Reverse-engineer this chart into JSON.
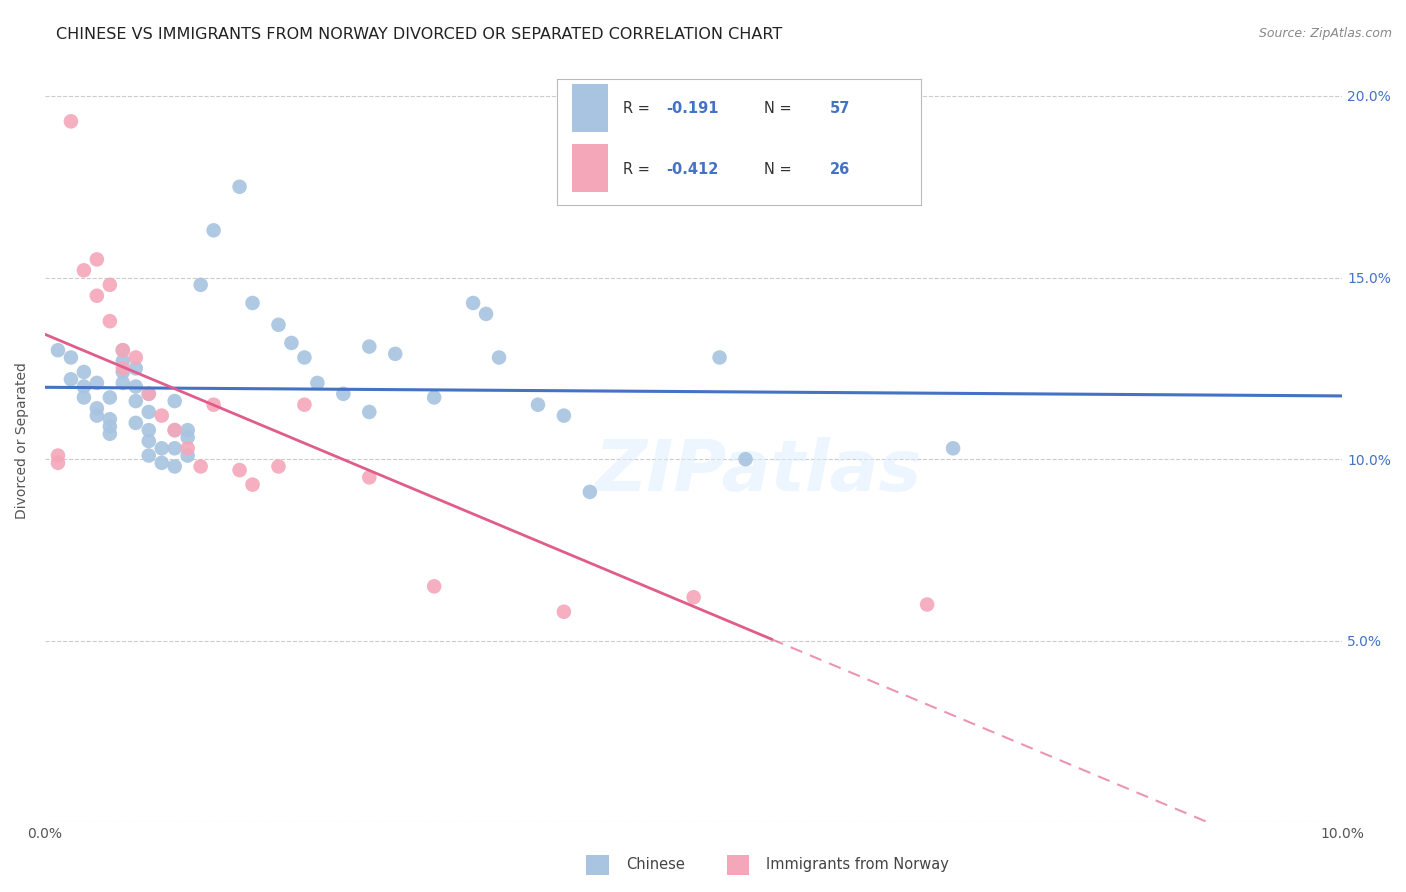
{
  "title": "CHINESE VS IMMIGRANTS FROM NORWAY DIVORCED OR SEPARATED CORRELATION CHART",
  "source": "Source: ZipAtlas.com",
  "ylabel": "Divorced or Separated",
  "xlim": [
    0.0,
    0.1
  ],
  "ylim": [
    0.0,
    0.21
  ],
  "xtick_positions": [
    0.0,
    0.02,
    0.04,
    0.06,
    0.08,
    0.1
  ],
  "xtick_labels": [
    "0.0%",
    "",
    "",
    "",
    "",
    "10.0%"
  ],
  "ytick_positions": [
    0.0,
    0.05,
    0.1,
    0.15,
    0.2
  ],
  "ytick_labels": [
    "",
    "5.0%",
    "10.0%",
    "15.0%",
    "20.0%"
  ],
  "watermark": "ZIPatlas",
  "chinese_color": "#a8c4e0",
  "norway_color": "#f4a7b9",
  "trend_chinese_color": "#4472c4",
  "trend_norway_color": "#e05c8a",
  "legend_r1": "R = ",
  "legend_r1_val": "-0.191",
  "legend_n1": "N = ",
  "legend_n1_val": "57",
  "legend_r2": "R = ",
  "legend_r2_val": "-0.412",
  "legend_n2": "N = ",
  "legend_n2_val": "26",
  "legend_val_color": "#4472c4",
  "legend_text_color": "#333333",
  "bottom_label1": "Chinese",
  "bottom_label2": "Immigrants from Norway",
  "background_color": "#ffffff",
  "grid_color": "#cccccc",
  "title_fontsize": 11.5,
  "tick_fontsize": 10,
  "label_fontsize": 10,
  "source_fontsize": 9,
  "chinese_scatter": [
    [
      0.001,
      0.13
    ],
    [
      0.002,
      0.128
    ],
    [
      0.002,
      0.122
    ],
    [
      0.003,
      0.124
    ],
    [
      0.003,
      0.12
    ],
    [
      0.003,
      0.117
    ],
    [
      0.004,
      0.121
    ],
    [
      0.004,
      0.114
    ],
    [
      0.004,
      0.112
    ],
    [
      0.005,
      0.117
    ],
    [
      0.005,
      0.111
    ],
    [
      0.005,
      0.109
    ],
    [
      0.005,
      0.107
    ],
    [
      0.006,
      0.13
    ],
    [
      0.006,
      0.127
    ],
    [
      0.006,
      0.124
    ],
    [
      0.006,
      0.121
    ],
    [
      0.007,
      0.125
    ],
    [
      0.007,
      0.12
    ],
    [
      0.007,
      0.116
    ],
    [
      0.007,
      0.11
    ],
    [
      0.008,
      0.118
    ],
    [
      0.008,
      0.113
    ],
    [
      0.008,
      0.108
    ],
    [
      0.008,
      0.105
    ],
    [
      0.008,
      0.101
    ],
    [
      0.009,
      0.103
    ],
    [
      0.009,
      0.099
    ],
    [
      0.01,
      0.116
    ],
    [
      0.01,
      0.108
    ],
    [
      0.01,
      0.103
    ],
    [
      0.01,
      0.098
    ],
    [
      0.011,
      0.108
    ],
    [
      0.011,
      0.106
    ],
    [
      0.011,
      0.101
    ],
    [
      0.012,
      0.148
    ],
    [
      0.013,
      0.163
    ],
    [
      0.015,
      0.175
    ],
    [
      0.016,
      0.143
    ],
    [
      0.018,
      0.137
    ],
    [
      0.019,
      0.132
    ],
    [
      0.02,
      0.128
    ],
    [
      0.021,
      0.121
    ],
    [
      0.023,
      0.118
    ],
    [
      0.025,
      0.113
    ],
    [
      0.025,
      0.131
    ],
    [
      0.027,
      0.129
    ],
    [
      0.03,
      0.117
    ],
    [
      0.033,
      0.143
    ],
    [
      0.034,
      0.14
    ],
    [
      0.035,
      0.128
    ],
    [
      0.038,
      0.115
    ],
    [
      0.04,
      0.112
    ],
    [
      0.042,
      0.091
    ],
    [
      0.052,
      0.128
    ],
    [
      0.054,
      0.1
    ],
    [
      0.07,
      0.103
    ]
  ],
  "norway_scatter": [
    [
      0.001,
      0.101
    ],
    [
      0.001,
      0.099
    ],
    [
      0.002,
      0.193
    ],
    [
      0.003,
      0.152
    ],
    [
      0.004,
      0.155
    ],
    [
      0.004,
      0.145
    ],
    [
      0.005,
      0.148
    ],
    [
      0.005,
      0.138
    ],
    [
      0.006,
      0.13
    ],
    [
      0.006,
      0.125
    ],
    [
      0.007,
      0.128
    ],
    [
      0.008,
      0.118
    ],
    [
      0.009,
      0.112
    ],
    [
      0.01,
      0.108
    ],
    [
      0.011,
      0.103
    ],
    [
      0.012,
      0.098
    ],
    [
      0.013,
      0.115
    ],
    [
      0.015,
      0.097
    ],
    [
      0.016,
      0.093
    ],
    [
      0.018,
      0.098
    ],
    [
      0.02,
      0.115
    ],
    [
      0.025,
      0.095
    ],
    [
      0.03,
      0.065
    ],
    [
      0.04,
      0.058
    ],
    [
      0.05,
      0.062
    ],
    [
      0.068,
      0.06
    ]
  ]
}
